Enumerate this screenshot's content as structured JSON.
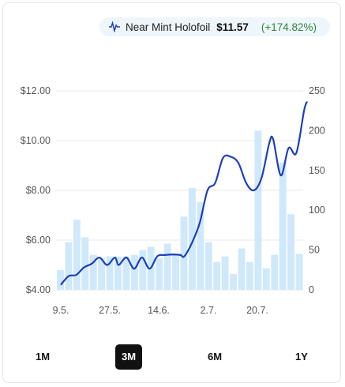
{
  "legend": {
    "label": "Near Mint Holofoil",
    "price": "$11.57",
    "change": "(+174.82%)",
    "icon": "line-chart-icon"
  },
  "colors": {
    "line": "#1d3fbb",
    "bars": "#cfe9fb",
    "change_positive": "#2a8a3c",
    "active_range_bg": "#111111"
  },
  "ranges": [
    {
      "label": "1M",
      "active": false
    },
    {
      "label": "3M",
      "active": true
    },
    {
      "label": "6M",
      "active": false
    },
    {
      "label": "1Y",
      "active": false
    }
  ],
  "chart_data": {
    "type": "line",
    "x_tick_labels": [
      "9.5.",
      "27.5.",
      "14.6.",
      "2.7.",
      "20.7."
    ],
    "y_left": {
      "ticks": [
        "$4.00",
        "$6.00",
        "$8.00",
        "$10.00",
        "$12.00"
      ],
      "range": [
        4,
        12
      ]
    },
    "y_right": {
      "ticks": [
        "0",
        "50",
        "100",
        "150",
        "200",
        "250"
      ],
      "range": [
        0,
        250
      ]
    },
    "grid": true,
    "price_series": {
      "axis": "left",
      "points": [
        [
          0,
          4.2
        ],
        [
          2,
          4.55
        ],
        [
          4,
          4.6
        ],
        [
          6,
          4.9
        ],
        [
          8,
          5.05
        ],
        [
          10,
          5.3
        ],
        [
          12,
          5.0
        ],
        [
          14,
          5.3
        ],
        [
          15,
          5.0
        ],
        [
          17,
          5.3
        ],
        [
          19,
          4.85
        ],
        [
          21,
          5.3
        ],
        [
          23,
          4.85
        ],
        [
          25,
          5.35
        ],
        [
          27,
          5.4
        ],
        [
          29,
          5.42
        ],
        [
          31,
          5.4
        ],
        [
          32,
          5.35
        ],
        [
          34,
          5.9
        ],
        [
          36,
          6.7
        ],
        [
          38,
          8.0
        ],
        [
          40,
          8.3
        ],
        [
          42,
          9.3
        ],
        [
          44,
          9.35
        ],
        [
          46,
          9.1
        ],
        [
          48,
          8.3
        ],
        [
          50,
          8.0
        ],
        [
          52,
          8.5
        ],
        [
          54,
          9.9
        ],
        [
          55,
          10.05
        ],
        [
          57,
          8.6
        ],
        [
          59,
          9.7
        ],
        [
          61,
          9.5
        ],
        [
          63,
          11.2
        ],
        [
          63.8,
          11.57
        ]
      ]
    },
    "volume_series": {
      "axis": "right",
      "values": [
        25,
        60,
        88,
        66,
        44,
        40,
        42,
        42,
        42,
        44,
        50,
        54,
        40,
        58,
        45,
        92,
        128,
        110,
        60,
        35,
        42,
        20,
        52,
        35,
        200,
        27,
        44,
        160,
        95,
        45
      ]
    }
  }
}
